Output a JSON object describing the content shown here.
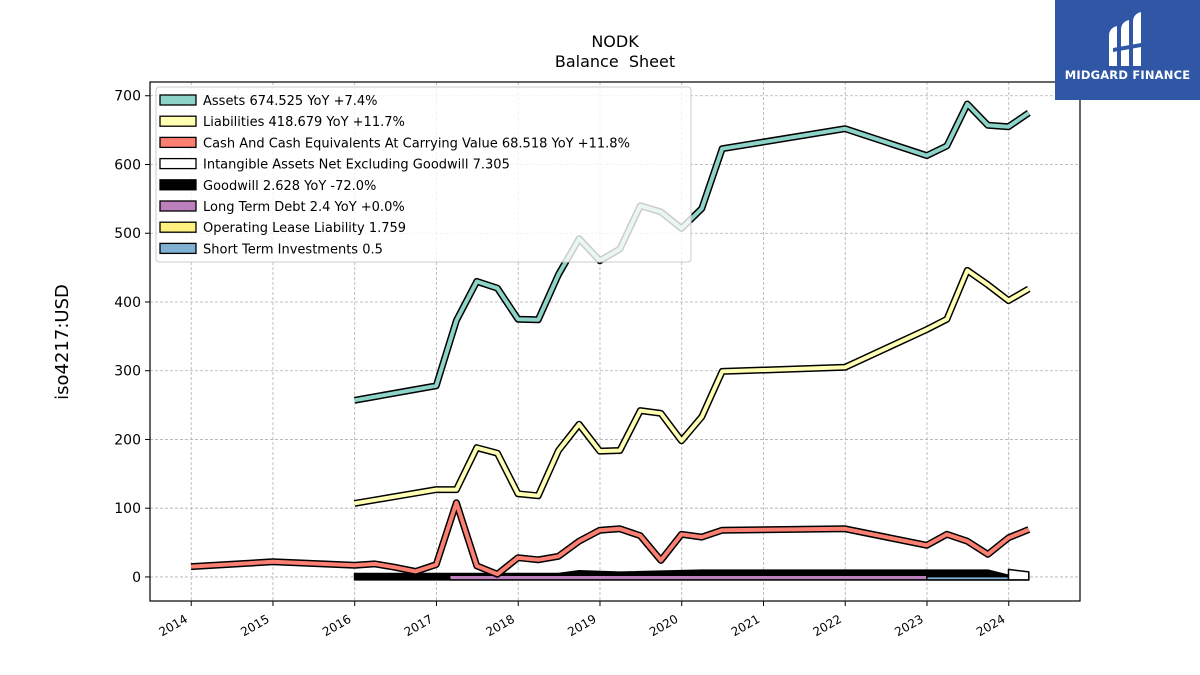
{
  "chart_data": {
    "type": "line",
    "title": "NODK",
    "subtitle": "Balance  Sheet",
    "ylabel": "iso4217:USD",
    "xlabel": "",
    "ylim": [
      -35,
      720
    ],
    "xlim": [
      "2013-07-01",
      "2024-11-15"
    ],
    "yticks": [
      0,
      100,
      200,
      300,
      400,
      500,
      600,
      700
    ],
    "xticks": [
      "2014",
      "2015",
      "2016",
      "2017",
      "2018",
      "2019",
      "2020",
      "2021",
      "2022",
      "2023",
      "2024"
    ],
    "grid": true,
    "legend_position": "top-left",
    "series": [
      {
        "name": "Assets",
        "legend": "Assets  674.525 YoY +7.4%",
        "color": "#8dd3c7",
        "style": "line",
        "points": [
          [
            "2015-12-31",
            257
          ],
          [
            "2016-12-31",
            278
          ],
          [
            "2017-03-31",
            373
          ],
          [
            "2017-06-30",
            430
          ],
          [
            "2017-09-30",
            420
          ],
          [
            "2017-12-31",
            375
          ],
          [
            "2018-03-31",
            374
          ],
          [
            "2018-06-30",
            440
          ],
          [
            "2018-09-30",
            492
          ],
          [
            "2018-12-31",
            460
          ],
          [
            "2019-03-31",
            477
          ],
          [
            "2019-06-30",
            540
          ],
          [
            "2019-09-30",
            531
          ],
          [
            "2019-12-31",
            507
          ],
          [
            "2020-03-31",
            536
          ],
          [
            "2020-06-30",
            623
          ],
          [
            "2021-12-31",
            652
          ],
          [
            "2022-12-31",
            613
          ],
          [
            "2023-03-31",
            627
          ],
          [
            "2023-06-30",
            688
          ],
          [
            "2023-09-30",
            657
          ],
          [
            "2023-12-31",
            655
          ],
          [
            "2024-03-31",
            675
          ]
        ]
      },
      {
        "name": "Liabilities",
        "legend": "Liabilities  418.679 YoY +11.7%",
        "color": "#ffffb3",
        "style": "line",
        "points": [
          [
            "2015-12-31",
            107
          ],
          [
            "2016-12-31",
            127
          ],
          [
            "2017-03-31",
            127
          ],
          [
            "2017-06-30",
            188
          ],
          [
            "2017-09-30",
            180
          ],
          [
            "2017-12-31",
            121
          ],
          [
            "2018-03-31",
            118
          ],
          [
            "2018-06-30",
            184
          ],
          [
            "2018-09-30",
            222
          ],
          [
            "2018-12-31",
            183
          ],
          [
            "2019-03-31",
            184
          ],
          [
            "2019-06-30",
            242
          ],
          [
            "2019-09-30",
            238
          ],
          [
            "2019-12-31",
            198
          ],
          [
            "2020-03-31",
            233
          ],
          [
            "2020-06-30",
            299
          ],
          [
            "2021-12-31",
            305
          ],
          [
            "2022-12-31",
            360
          ],
          [
            "2023-03-31",
            375
          ],
          [
            "2023-06-30",
            446
          ],
          [
            "2023-09-30",
            425
          ],
          [
            "2023-12-31",
            402
          ],
          [
            "2024-03-31",
            419
          ]
        ]
      },
      {
        "name": "Cash And Cash Equivalents At Carrying Value",
        "legend": "Cash And Cash Equivalents At Carrying Value  68.518 YoY +11.8%",
        "color": "#fb8072",
        "style": "line",
        "points": [
          [
            "2013-12-31",
            15
          ],
          [
            "2014-12-31",
            22
          ],
          [
            "2015-12-31",
            17
          ],
          [
            "2016-03-31",
            19
          ],
          [
            "2016-06-30",
            14
          ],
          [
            "2016-09-30",
            8
          ],
          [
            "2016-12-31",
            18
          ],
          [
            "2017-03-31",
            108
          ],
          [
            "2017-06-30",
            16
          ],
          [
            "2017-09-30",
            4
          ],
          [
            "2017-12-31",
            28
          ],
          [
            "2018-03-31",
            25
          ],
          [
            "2018-06-30",
            30
          ],
          [
            "2018-09-30",
            52
          ],
          [
            "2018-12-31",
            68
          ],
          [
            "2019-03-31",
            70
          ],
          [
            "2019-06-30",
            60
          ],
          [
            "2019-09-30",
            24
          ],
          [
            "2019-12-31",
            62
          ],
          [
            "2020-03-31",
            58
          ],
          [
            "2020-06-30",
            68
          ],
          [
            "2021-12-31",
            70
          ],
          [
            "2022-12-31",
            46
          ],
          [
            "2023-03-31",
            62
          ],
          [
            "2023-06-30",
            52
          ],
          [
            "2023-09-30",
            33
          ],
          [
            "2023-12-31",
            57
          ],
          [
            "2024-03-31",
            69
          ]
        ]
      },
      {
        "name": "Intangible Assets Net Excluding Goodwill",
        "legend": "Intangible Assets Net Excluding Goodwill  7.305",
        "color": "#ffffff",
        "style": "band",
        "points": [
          [
            "2023-12-31",
            11
          ],
          [
            "2024-03-31",
            7.3
          ]
        ]
      },
      {
        "name": "Goodwill",
        "legend": "Goodwill  2.628 YoY -72.0%",
        "color": "#000000",
        "style": "band",
        "points": [
          [
            "2015-12-31",
            5
          ],
          [
            "2017-12-31",
            5
          ],
          [
            "2018-06-30",
            5
          ],
          [
            "2018-09-30",
            9
          ],
          [
            "2019-03-31",
            7
          ],
          [
            "2020-03-31",
            10
          ],
          [
            "2023-09-30",
            10
          ],
          [
            "2023-12-31",
            2.6
          ]
        ]
      },
      {
        "name": "Long Term Debt",
        "legend": "Long Term Debt  2.4 YoY +0.0%",
        "color": "#bc80bd",
        "style": "band",
        "points": [
          [
            "2017-03-01",
            2.4
          ],
          [
            "2024-03-31",
            2.4
          ]
        ]
      },
      {
        "name": "Operating Lease Liability",
        "legend": "Operating Lease Liability  1.759",
        "color": "#fff180",
        "style": "band",
        "points": [
          [
            "2023-12-31",
            1.8
          ],
          [
            "2024-03-31",
            1.8
          ]
        ]
      },
      {
        "name": "Short Term Investments",
        "legend": "Short Term Investments  0.5",
        "color": "#80b1d3",
        "style": "band",
        "points": [
          [
            "2022-12-31",
            0.5
          ],
          [
            "2023-12-31",
            0.5
          ]
        ]
      }
    ]
  },
  "brand": {
    "name": "MIDGARD FINANCE",
    "background": "#2f57a6"
  }
}
